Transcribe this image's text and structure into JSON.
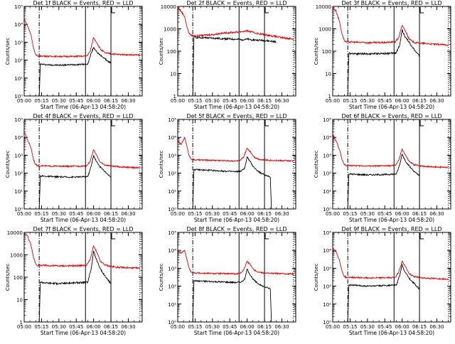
{
  "colors": {
    "events": "#000000",
    "lld": "#e00000",
    "axis": "#000000",
    "background": "#ffffff"
  },
  "x_tick_labels": [
    "05:00",
    "05:15",
    "05:30",
    "05:45",
    "06:00",
    "06:15",
    "06:30"
  ],
  "x_ticks_minutes": [
    0,
    15,
    30,
    45,
    60,
    75,
    90
  ],
  "xlim_minutes": [
    0,
    102
  ],
  "vertical_markers": [
    {
      "minute": 13,
      "style": "dashdot"
    },
    {
      "minute": 53,
      "style": "solid"
    },
    {
      "minute": 75,
      "style": "solid"
    },
    {
      "minute": 100,
      "style": "dotted"
    }
  ],
  "chart_data": [
    {
      "type": "line",
      "title": "Det 1f BLACK = Events, RED = LLD",
      "xlabel": "Start Time (06-Apr-13 04:58:20)",
      "ylabel": "Counts/sec",
      "yscale": "log",
      "ylim": [
        1,
        100000
      ],
      "ytick_labels": [
        "10⁰",
        "10¹",
        "10²",
        "10³",
        "10⁴",
        "10⁵"
      ],
      "ytick_values": [
        1,
        10,
        100,
        1000,
        10000,
        100000
      ],
      "series": [
        {
          "name": "Events",
          "color": "#000000",
          "x": [
            13,
            14,
            20,
            30,
            40,
            50,
            55,
            58,
            60,
            62,
            65,
            68,
            72,
            75
          ],
          "y": [
            1,
            60,
            55,
            52,
            55,
            58,
            60,
            250,
            500,
            350,
            200,
            150,
            90,
            70
          ]
        },
        {
          "name": "LLD",
          "color": "#e00000",
          "x": [
            0,
            3,
            6,
            8,
            10,
            12,
            15,
            20,
            30,
            40,
            50,
            54,
            57,
            60,
            63,
            66,
            70,
            75,
            80,
            90,
            100
          ],
          "y": [
            20000,
            8000,
            2500,
            500,
            200,
            160,
            170,
            165,
            160,
            160,
            165,
            170,
            300,
            1800,
            900,
            400,
            250,
            230,
            210,
            200,
            190
          ]
        }
      ]
    },
    {
      "type": "line",
      "title": "Det 2f BLACK = Events, RED = LLD",
      "xlabel": "Start Time (06-Apr-13 04:58:20)",
      "ylabel": "Counts/sec",
      "yscale": "log",
      "ylim": [
        1,
        10000
      ],
      "ytick_labels": [
        "1",
        "10",
        "100",
        "1000",
        "10000"
      ],
      "ytick_values": [
        1,
        10,
        100,
        1000,
        10000
      ],
      "series": [
        {
          "name": "Events",
          "color": "#000000",
          "x": [
            13,
            14,
            20,
            30,
            40,
            50,
            55,
            60,
            65,
            70,
            75,
            80,
            85
          ],
          "y": [
            1,
            420,
            400,
            380,
            360,
            340,
            330,
            340,
            320,
            310,
            300,
            280,
            260
          ]
        },
        {
          "name": "LLD",
          "color": "#e00000",
          "x": [
            0,
            3,
            6,
            8,
            10,
            12,
            15,
            20,
            30,
            40,
            50,
            55,
            60,
            65,
            70,
            75,
            80,
            90,
            100
          ],
          "y": [
            9000,
            6000,
            3500,
            1200,
            600,
            500,
            480,
            500,
            550,
            650,
            700,
            750,
            800,
            700,
            600,
            550,
            500,
            400,
            350
          ]
        }
      ]
    },
    {
      "type": "line",
      "title": "Det 3f BLACK = Events, RED = LLD",
      "xlabel": "Start Time (06-Apr-13 04:58:20)",
      "ylabel": "Counts/sec",
      "yscale": "log",
      "ylim": [
        1,
        10000
      ],
      "ytick_labels": [
        "1",
        "10",
        "100",
        "1000",
        "10000"
      ],
      "ytick_values": [
        1,
        10,
        100,
        1000,
        10000
      ],
      "series": [
        {
          "name": "Events",
          "color": "#000000",
          "x": [
            13,
            14,
            20,
            30,
            40,
            50,
            55,
            58,
            60,
            62,
            65,
            68,
            72,
            75
          ],
          "y": [
            1,
            80,
            78,
            76,
            78,
            80,
            85,
            200,
            900,
            500,
            300,
            180,
            90,
            60
          ]
        },
        {
          "name": "LLD",
          "color": "#e00000",
          "x": [
            0,
            3,
            6,
            8,
            10,
            12,
            15,
            20,
            30,
            40,
            50,
            54,
            57,
            60,
            63,
            66,
            70,
            75,
            80,
            90,
            100
          ],
          "y": [
            9000,
            6000,
            2000,
            600,
            300,
            250,
            260,
            250,
            240,
            240,
            250,
            260,
            400,
            1400,
            800,
            350,
            250,
            230,
            220,
            200,
            190
          ]
        }
      ]
    },
    {
      "type": "line",
      "title": "Det 4f BLACK = Events, RED = LLD",
      "xlabel": "Start Time (06-Apr-13 04:58:20)",
      "ylabel": "Counts/sec",
      "yscale": "log",
      "ylim": [
        1,
        100000
      ],
      "ytick_labels": [
        "10⁰",
        "10¹",
        "10²",
        "10³",
        "10⁴",
        "10⁵"
      ],
      "ytick_values": [
        1,
        10,
        100,
        1000,
        10000,
        100000
      ],
      "series": [
        {
          "name": "Events",
          "color": "#000000",
          "x": [
            13,
            14,
            20,
            30,
            40,
            50,
            55,
            58,
            60,
            62,
            65,
            68,
            72,
            75
          ],
          "y": [
            1,
            70,
            65,
            62,
            60,
            62,
            65,
            250,
            1000,
            500,
            250,
            160,
            90,
            60
          ]
        },
        {
          "name": "LLD",
          "color": "#e00000",
          "x": [
            0,
            3,
            6,
            8,
            10,
            12,
            15,
            20,
            30,
            40,
            50,
            54,
            57,
            60,
            63,
            66,
            70,
            75,
            80,
            90,
            100
          ],
          "y": [
            20000,
            7000,
            2500,
            600,
            300,
            250,
            260,
            250,
            240,
            240,
            250,
            260,
            450,
            2000,
            900,
            400,
            280,
            250,
            230,
            210,
            200
          ]
        }
      ]
    },
    {
      "type": "line",
      "title": "Det 5f BLACK = Events, RED = LLD",
      "xlabel": "Start Time (06-Apr-13 04:58:20)",
      "ylabel": "Counts/sec",
      "yscale": "log",
      "ylim": [
        1,
        100000
      ],
      "ytick_labels": [
        "10⁰",
        "10¹",
        "10²",
        "10³",
        "10⁴",
        "10⁵"
      ],
      "ytick_values": [
        1,
        10,
        100,
        1000,
        10000,
        100000
      ],
      "series": [
        {
          "name": "Events",
          "color": "#000000",
          "x": [
            13,
            14,
            20,
            30,
            40,
            50,
            55,
            58,
            60,
            62,
            65,
            68,
            72,
            75,
            78,
            80,
            81
          ],
          "y": [
            1,
            160,
            150,
            140,
            130,
            120,
            130,
            200,
            800,
            500,
            250,
            150,
            100,
            80,
            70,
            60,
            1
          ]
        },
        {
          "name": "LLD",
          "color": "#e00000",
          "x": [
            0,
            3,
            6,
            8,
            10,
            12,
            15,
            20,
            30,
            40,
            50,
            54,
            57,
            60,
            63,
            66,
            70,
            75,
            80,
            90,
            100
          ],
          "y": [
            6000,
            4000,
            10000,
            3000,
            900,
            600,
            550,
            540,
            520,
            500,
            480,
            500,
            800,
            2500,
            1500,
            800,
            600,
            550,
            520,
            500,
            480
          ]
        }
      ]
    },
    {
      "type": "line",
      "title": "Det 6f BLACK = Events, RED = LLD",
      "xlabel": "Start Time (06-Apr-13 04:58:20)",
      "ylabel": "Counts/sec",
      "yscale": "log",
      "ylim": [
        1,
        100000
      ],
      "ytick_labels": [
        "10⁰",
        "10¹",
        "10²",
        "10³",
        "10⁴",
        "10⁵"
      ],
      "ytick_values": [
        1,
        10,
        100,
        1000,
        10000,
        100000
      ],
      "series": [
        {
          "name": "Events",
          "color": "#000000",
          "x": [
            13,
            14,
            20,
            30,
            40,
            50,
            55,
            58,
            60,
            62,
            65,
            68,
            72,
            75
          ],
          "y": [
            1,
            90,
            85,
            80,
            82,
            85,
            90,
            300,
            1200,
            600,
            300,
            180,
            100,
            70
          ]
        },
        {
          "name": "LLD",
          "color": "#e00000",
          "x": [
            0,
            3,
            6,
            8,
            10,
            12,
            15,
            20,
            30,
            40,
            50,
            54,
            57,
            60,
            63,
            66,
            70,
            75,
            80,
            90,
            100
          ],
          "y": [
            15000,
            6000,
            2000,
            600,
            300,
            260,
            270,
            260,
            250,
            250,
            260,
            270,
            500,
            2200,
            1000,
            450,
            300,
            260,
            240,
            220,
            210
          ]
        }
      ]
    },
    {
      "type": "line",
      "title": "Det 7f BLACK = Events, RED = LLD",
      "xlabel": "Start Time (06-Apr-13 04:58:20)",
      "ylabel": "Counts/sec",
      "yscale": "log",
      "ylim": [
        1,
        10000
      ],
      "ytick_labels": [
        "1",
        "10",
        "100",
        "1000",
        "10000"
      ],
      "ytick_values": [
        1,
        10,
        100,
        1000,
        10000
      ],
      "series": [
        {
          "name": "Events",
          "color": "#000000",
          "x": [
            13,
            14,
            20,
            30,
            40,
            50,
            55,
            58,
            60,
            62,
            65,
            68,
            72,
            75
          ],
          "y": [
            1,
            60,
            55,
            52,
            55,
            58,
            60,
            250,
            1500,
            700,
            300,
            150,
            80,
            50
          ]
        },
        {
          "name": "LLD",
          "color": "#e00000",
          "x": [
            0,
            3,
            6,
            8,
            10,
            12,
            15,
            20,
            30,
            40,
            50,
            54,
            57,
            60,
            63,
            66,
            70,
            75,
            80,
            90,
            100
          ],
          "y": [
            9000,
            7000,
            2500,
            800,
            400,
            330,
            340,
            330,
            320,
            320,
            330,
            340,
            600,
            2500,
            1200,
            500,
            350,
            300,
            280,
            260,
            250
          ]
        }
      ]
    },
    {
      "type": "line",
      "title": "Det 8f BLACK = Events, RED = LLD",
      "xlabel": "Start Time (06-Apr-13 04:58:20)",
      "ylabel": "Counts/sec",
      "yscale": "log",
      "ylim": [
        1,
        100000
      ],
      "ytick_labels": [
        "10⁰",
        "10¹",
        "10²",
        "10³",
        "10⁴",
        "10⁵"
      ],
      "ytick_values": [
        1,
        10,
        100,
        1000,
        10000,
        100000
      ],
      "series": [
        {
          "name": "Events",
          "color": "#000000",
          "x": [
            13,
            14,
            20,
            30,
            40,
            50,
            55,
            58,
            60,
            62,
            65,
            68,
            72,
            75,
            78,
            80,
            81
          ],
          "y": [
            1,
            200,
            190,
            180,
            170,
            160,
            170,
            250,
            900,
            500,
            250,
            160,
            110,
            90,
            80,
            70,
            1
          ]
        },
        {
          "name": "LLD",
          "color": "#e00000",
          "x": [
            0,
            3,
            6,
            8,
            10,
            12,
            15,
            20,
            30,
            40,
            50,
            54,
            57,
            60,
            63,
            66,
            70,
            75,
            80,
            90,
            100
          ],
          "y": [
            9000,
            7000,
            10000,
            3000,
            900,
            600,
            550,
            530,
            510,
            500,
            490,
            510,
            800,
            2500,
            1500,
            800,
            600,
            550,
            520,
            500,
            480
          ]
        }
      ]
    },
    {
      "type": "line",
      "title": "Det 9f BLACK = Events, RED = LLD",
      "xlabel": "Start Time (06-Apr-13 04:58:20)",
      "ylabel": "Counts/sec",
      "yscale": "log",
      "ylim": [
        1,
        100000
      ],
      "ytick_labels": [
        "10⁰",
        "10¹",
        "10²",
        "10³",
        "10⁴",
        "10⁵"
      ],
      "ytick_values": [
        1,
        10,
        100,
        1000,
        10000,
        100000
      ],
      "series": [
        {
          "name": "Events",
          "color": "#000000",
          "x": [
            13,
            14,
            20,
            30,
            40,
            50,
            55,
            58,
            60,
            62,
            65,
            68,
            72,
            75
          ],
          "y": [
            1,
            120,
            110,
            100,
            105,
            110,
            115,
            400,
            1600,
            700,
            350,
            200,
            110,
            70
          ]
        },
        {
          "name": "LLD",
          "color": "#e00000",
          "x": [
            0,
            3,
            6,
            8,
            10,
            12,
            15,
            20,
            30,
            40,
            50,
            54,
            57,
            60,
            63,
            66,
            70,
            75,
            80,
            90,
            100
          ],
          "y": [
            15000,
            8000,
            2500,
            700,
            350,
            300,
            310,
            300,
            290,
            290,
            300,
            310,
            600,
            2500,
            1200,
            500,
            350,
            300,
            280,
            260,
            250
          ]
        }
      ]
    }
  ]
}
